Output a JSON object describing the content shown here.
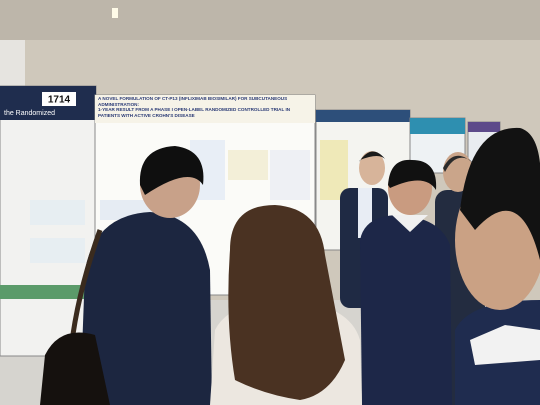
{
  "posters": [
    {
      "number": "1714",
      "title_fragment": "the Randomized"
    },
    {
      "title": "A NOVEL FORMULATION OF CT-P13 (INFLIXIMAB BIOSIMILAR) FOR SUBCUTANEOUS ADMINISTRATION:",
      "subtitle": "1-YEAR RESULT FROM A PHASE I OPEN-LABEL RANDOMIZED CONTROLLED TRIAL IN PATIENTS WITH ACTIVE CROHN'S DISEASE"
    }
  ]
}
